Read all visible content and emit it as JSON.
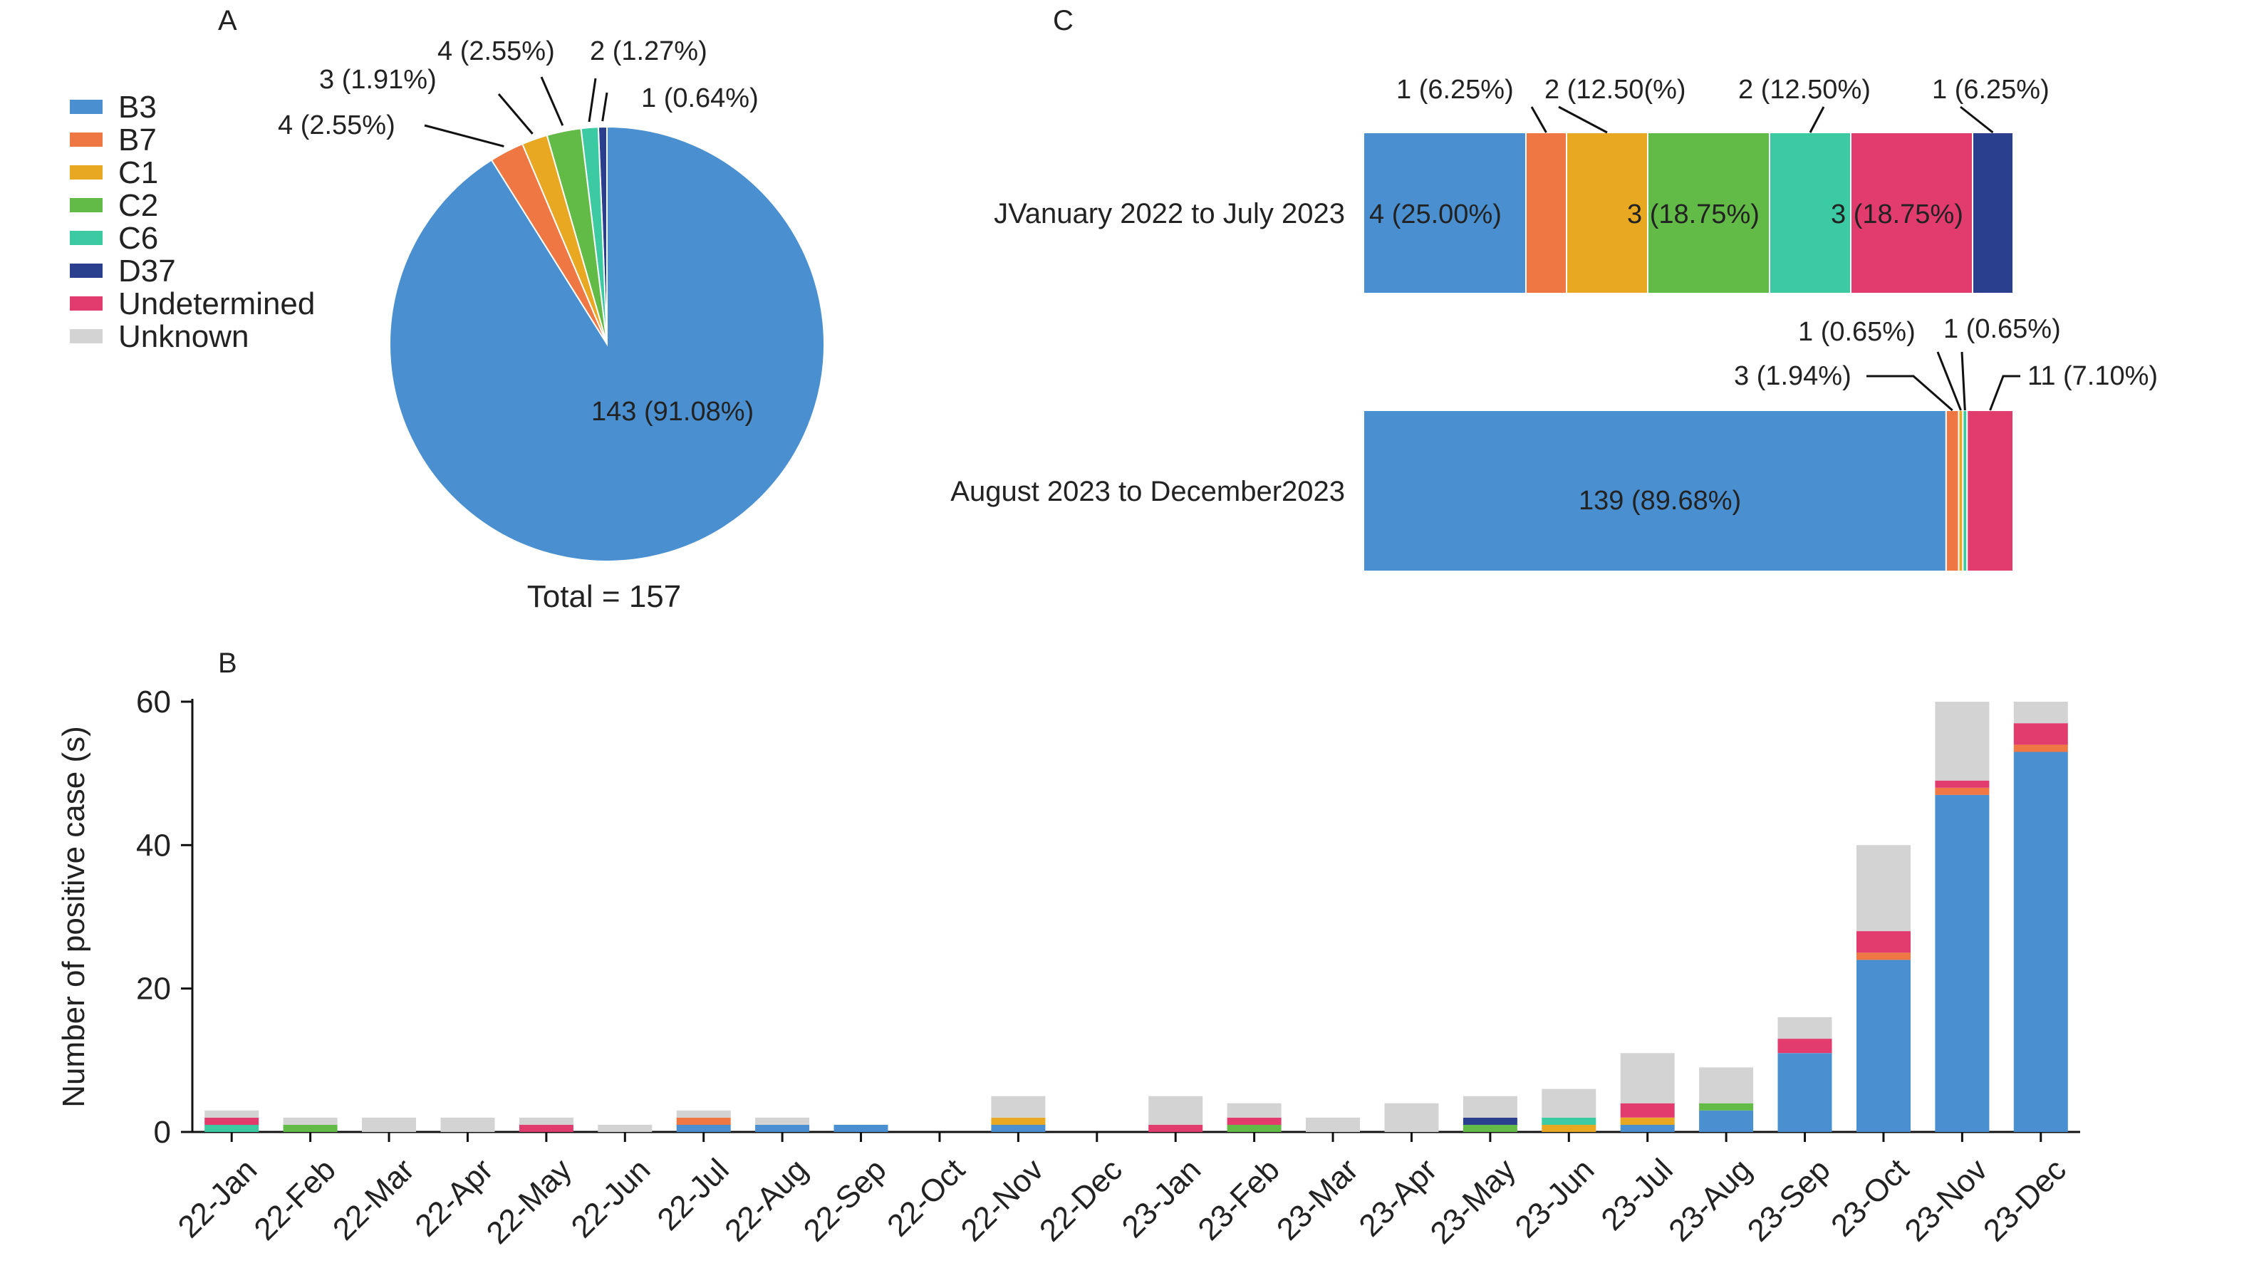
{
  "colors": {
    "B3": "#4a90d0",
    "B7": "#ee7743",
    "C1": "#e9a822",
    "C2": "#63bb47",
    "C6": "#3ccaa3",
    "D37": "#2b3f8f",
    "Undetermined": "#e23b6e",
    "Unknown": "#d3d3d3"
  },
  "chart_data": [
    {
      "panel": "A",
      "type": "pie",
      "legend": [
        "B3",
        "B7",
        "C1",
        "C2",
        "C6",
        "D37",
        "Undetermined",
        "Unknown"
      ],
      "legend_placement": "left",
      "slices": [
        {
          "name": "B3",
          "value": 143,
          "label": "143 (91.08%)"
        },
        {
          "name": "B7",
          "value": 4,
          "label": "4 (2.55%)"
        },
        {
          "name": "C1",
          "value": 3,
          "label": "3 (1.91%)"
        },
        {
          "name": "C2",
          "value": 4,
          "label": "4 (2.55%)"
        },
        {
          "name": "C6",
          "value": 2,
          "label": "2 (1.27%)"
        },
        {
          "name": "D37",
          "value": 1,
          "label": "1 (0.64%)"
        }
      ],
      "total_label": "Total = 157"
    },
    {
      "panel": "C",
      "type": "bar",
      "orientation": "horizontal-stacked-100%",
      "rows": [
        {
          "label": "JVanuary 2022 to July 2023",
          "segments": [
            {
              "name": "B3",
              "value": 4,
              "label": "4 (25.00%)"
            },
            {
              "name": "B7",
              "value": 1,
              "label": "1 (6.25%)"
            },
            {
              "name": "C1",
              "value": 2,
              "label": "2 (12.50(%)"
            },
            {
              "name": "C2",
              "value": 3,
              "label": "3 (18.75%)"
            },
            {
              "name": "C6",
              "value": 2,
              "label": "2 (12.50%)"
            },
            {
              "name": "Undetermined",
              "value": 3,
              "label": "3 (18.75%)"
            },
            {
              "name": "D37",
              "value": 1,
              "label": "1 (6.25%)"
            }
          ]
        },
        {
          "label": "August 2023 to December2023",
          "segments": [
            {
              "name": "B3",
              "value": 139,
              "label": "139 (89.68%)"
            },
            {
              "name": "B7",
              "value": 3,
              "label": "3 (1.94%)"
            },
            {
              "name": "C1",
              "value": 1,
              "label": "1 (0.65%)"
            },
            {
              "name": "C6",
              "value": 1,
              "label": "1 (0.65%)"
            },
            {
              "name": "Undetermined",
              "value": 11,
              "label": "11 (7.10%)"
            }
          ]
        }
      ]
    },
    {
      "panel": "B",
      "type": "bar",
      "stacked": true,
      "ylabel": "Number of positive case (s)",
      "ylim": [
        0,
        60
      ],
      "yticks": [
        0,
        20,
        40,
        60
      ],
      "categories": [
        "22-Jan",
        "22-Feb",
        "22-Mar",
        "22-Apr",
        "22-May",
        "22-Jun",
        "22-Jul",
        "22-Aug",
        "22-Sep",
        "22-Oct",
        "22-Nov",
        "22-Dec",
        "23-Jan",
        "23-Feb",
        "23-Mar",
        "23-Apr",
        "23-May",
        "23-Jun",
        "23-Jul",
        "23-Aug",
        "23-Sep",
        "23-Oct",
        "23-Nov",
        "23-Dec"
      ],
      "series": [
        {
          "name": "B3",
          "values": [
            0,
            0,
            0,
            0,
            0,
            0,
            1,
            1,
            1,
            0,
            1,
            0,
            0,
            0,
            0,
            0,
            0,
            0,
            1,
            3,
            11,
            24,
            47,
            53
          ]
        },
        {
          "name": "B7",
          "values": [
            0,
            0,
            0,
            0,
            0,
            0,
            1,
            0,
            0,
            0,
            0,
            0,
            0,
            0,
            0,
            0,
            0,
            0,
            0,
            0,
            0,
            1,
            1,
            1
          ]
        },
        {
          "name": "C1",
          "values": [
            0,
            0,
            0,
            0,
            0,
            0,
            0,
            0,
            0,
            0,
            1,
            0,
            0,
            0,
            0,
            0,
            0,
            1,
            1,
            0,
            0,
            0,
            0,
            0
          ]
        },
        {
          "name": "C2",
          "values": [
            0,
            1,
            0,
            0,
            0,
            0,
            0,
            0,
            0,
            0,
            0,
            0,
            0,
            1,
            0,
            0,
            1,
            0,
            0,
            1,
            0,
            0,
            0,
            0
          ]
        },
        {
          "name": "C6",
          "values": [
            1,
            0,
            0,
            0,
            0,
            0,
            0,
            0,
            0,
            0,
            0,
            0,
            0,
            0,
            0,
            0,
            0,
            1,
            0,
            0,
            0,
            0,
            0,
            0
          ]
        },
        {
          "name": "D37",
          "values": [
            0,
            0,
            0,
            0,
            0,
            0,
            0,
            0,
            0,
            0,
            0,
            0,
            0,
            0,
            0,
            0,
            1,
            0,
            0,
            0,
            0,
            0,
            0,
            0
          ]
        },
        {
          "name": "Undetermined",
          "values": [
            1,
            0,
            0,
            0,
            1,
            0,
            0,
            0,
            0,
            0,
            0,
            0,
            1,
            1,
            0,
            0,
            0,
            0,
            2,
            0,
            2,
            3,
            1,
            3
          ]
        },
        {
          "name": "Unknown",
          "values": [
            1,
            1,
            2,
            2,
            1,
            1,
            1,
            1,
            0,
            0,
            3,
            0,
            4,
            2,
            2,
            4,
            3,
            4,
            7,
            5,
            3,
            12,
            15,
            9
          ]
        }
      ]
    }
  ],
  "panel_labels": {
    "a": "A",
    "b": "B",
    "c": "C"
  }
}
